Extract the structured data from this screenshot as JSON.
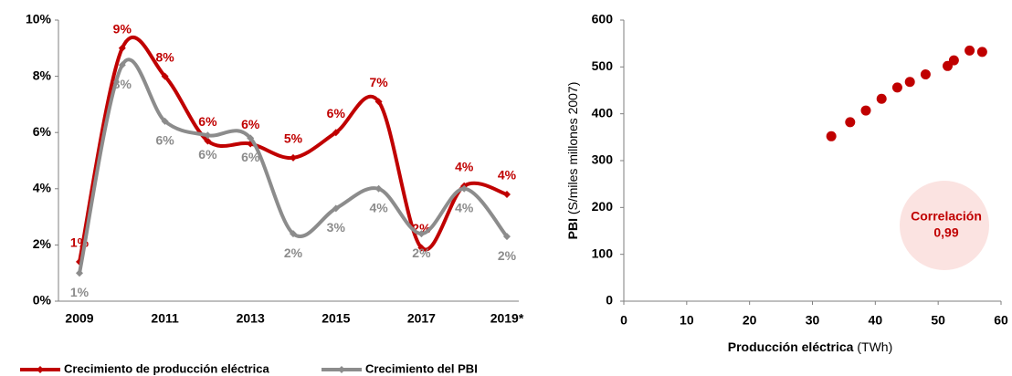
{
  "chart_data": [
    {
      "type": "line",
      "categories": [
        "2009",
        null,
        "2011",
        null,
        "2013",
        null,
        "2015",
        null,
        "2017",
        null,
        "2019*"
      ],
      "series": [
        {
          "name": "Crecimiento de producción eléctrica",
          "color": "#c00000",
          "values": [
            1.4,
            9.0,
            8.0,
            5.7,
            5.6,
            5.1,
            6.0,
            7.1,
            1.9,
            4.1,
            3.8
          ],
          "value_labels": [
            "1%",
            "9%",
            "8%",
            "6%",
            "6%",
            "5%",
            "6%",
            "7%",
            "2%",
            "4%",
            "4%"
          ]
        },
        {
          "name": "Crecimiento del PBI",
          "color": "#8c8c8c",
          "values": [
            1.0,
            8.4,
            6.4,
            5.9,
            5.8,
            2.4,
            3.3,
            4.0,
            2.4,
            4.0,
            2.3
          ],
          "value_labels": [
            "1%",
            "8%",
            "6%",
            "6%",
            "6%",
            "2%",
            "3%",
            "4%",
            "2%",
            "4%",
            "2%"
          ]
        }
      ],
      "ylim": [
        0,
        10
      ],
      "yticks": [
        {
          "value": 0,
          "label": "0%"
        },
        {
          "value": 2,
          "label": "2%"
        },
        {
          "value": 4,
          "label": "4%"
        },
        {
          "value": 6,
          "label": "6%"
        },
        {
          "value": 8,
          "label": "8%"
        },
        {
          "value": 10,
          "label": "10%"
        }
      ],
      "smooth": true,
      "legend": "bottom"
    },
    {
      "type": "scatter",
      "x": [
        33,
        36,
        38.5,
        41,
        43.5,
        45.5,
        48,
        51.5,
        52.5,
        55,
        57
      ],
      "values": [
        352,
        382,
        407,
        432,
        456,
        468,
        484,
        502,
        514,
        535,
        532
      ],
      "color": "#c00000",
      "xlim": [
        0,
        60
      ],
      "xticks": [
        0,
        10,
        20,
        30,
        40,
        50,
        60
      ],
      "ylim": [
        0,
        600
      ],
      "yticks": [
        0,
        100,
        200,
        300,
        400,
        500,
        600
      ],
      "x_label": "Producción eléctrica",
      "x_label_unit": "(TWh)",
      "y_label": "PBI",
      "y_label_unit": "(S/miles millones 2007)",
      "annotation": [
        "Correlación",
        "0,99"
      ]
    }
  ]
}
